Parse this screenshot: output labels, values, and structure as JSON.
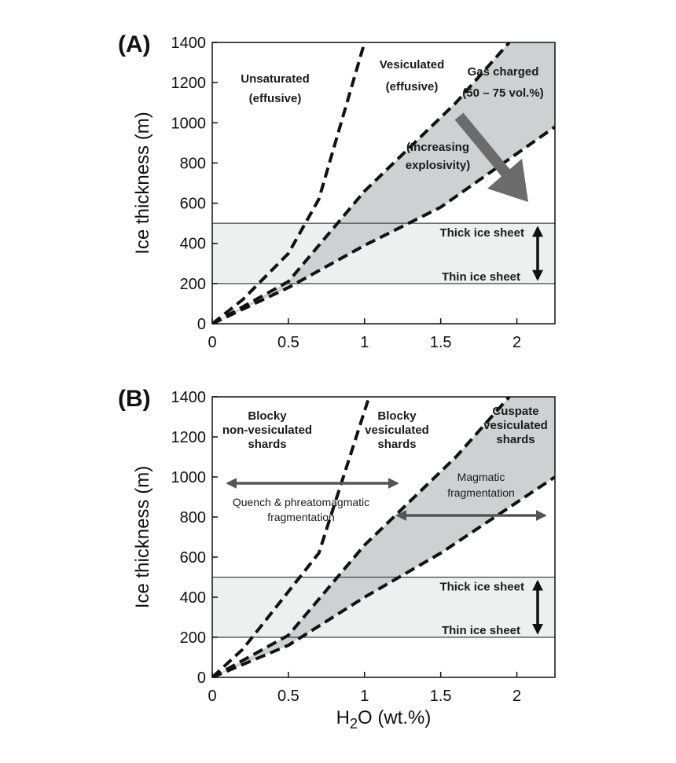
{
  "chart_data": [
    {
      "panel": "(A)",
      "type": "line",
      "ylabel": "Ice thickness (m)",
      "xlim": [
        0,
        2.25
      ],
      "ylim": [
        0,
        1400
      ],
      "xticks": [
        "0",
        "0.5",
        "1",
        "1.5",
        "2"
      ],
      "yticks": [
        "0",
        "200",
        "400",
        "600",
        "800",
        "1000",
        "1200",
        "1400"
      ],
      "lines": [
        {
          "x": [
            0,
            0.2,
            0.5,
            0.7,
            1.0
          ],
          "y": [
            0,
            120,
            350,
            620,
            1400
          ]
        },
        {
          "x": [
            0,
            0.5,
            1.0,
            1.6,
            1.95
          ],
          "y": [
            0,
            210,
            660,
            1100,
            1400
          ]
        },
        {
          "x": [
            0,
            0.5,
            1.0,
            1.5,
            2.25
          ],
          "y": [
            0,
            180,
            390,
            580,
            980
          ]
        }
      ],
      "bands": {
        "thin_ice_sheet": 200,
        "thick_ice_sheet": 500
      },
      "annotations": {
        "region1": [
          "Unsaturated",
          "(effusive)"
        ],
        "region2": [
          "Vesiculated",
          "(effusive)"
        ],
        "region3": [
          "Gas charged",
          "(50 – 75 vol.%)"
        ],
        "trend": [
          "(Increasing",
          "explosivity)"
        ],
        "thick": "Thick ice sheet",
        "thin": "Thin ice sheet"
      }
    },
    {
      "panel": "(B)",
      "type": "line",
      "xlabel": "H2O (wt.%)",
      "ylabel": "Ice thickness (m)",
      "xlim": [
        0,
        2.25
      ],
      "ylim": [
        0,
        1400
      ],
      "xticks": [
        "0",
        "0.5",
        "1",
        "1.5",
        "2"
      ],
      "yticks": [
        "0",
        "200",
        "400",
        "600",
        "800",
        "1000",
        "1200",
        "1400"
      ],
      "lines": [
        {
          "x": [
            0,
            0.2,
            0.45,
            0.7,
            1.03
          ],
          "y": [
            0,
            140,
            380,
            620,
            1400
          ]
        },
        {
          "x": [
            0,
            0.5,
            1.0,
            1.6,
            1.95
          ],
          "y": [
            0,
            210,
            660,
            1100,
            1400
          ]
        },
        {
          "x": [
            0,
            0.5,
            1.0,
            1.5,
            2.25
          ],
          "y": [
            0,
            160,
            400,
            620,
            1000
          ]
        }
      ],
      "bands": {
        "thin_ice_sheet": 200,
        "thick_ice_sheet": 500
      },
      "annotations": {
        "region1": [
          "Blocky",
          "non-vesiculated",
          "shards"
        ],
        "region2": [
          "Blocky",
          "vesiculated",
          "shards"
        ],
        "region3": [
          "Cuspate",
          "vesiculated",
          "shards"
        ],
        "arrow_left": [
          "Quench & phreatomagmatic",
          "fragmentation"
        ],
        "arrow_right": [
          "Magmatic",
          "fragmentation"
        ],
        "thick": "Thick ice sheet",
        "thin": "Thin ice sheet"
      }
    }
  ],
  "xaxis_title_parts": [
    "H",
    "2",
    "O (wt.%)"
  ]
}
